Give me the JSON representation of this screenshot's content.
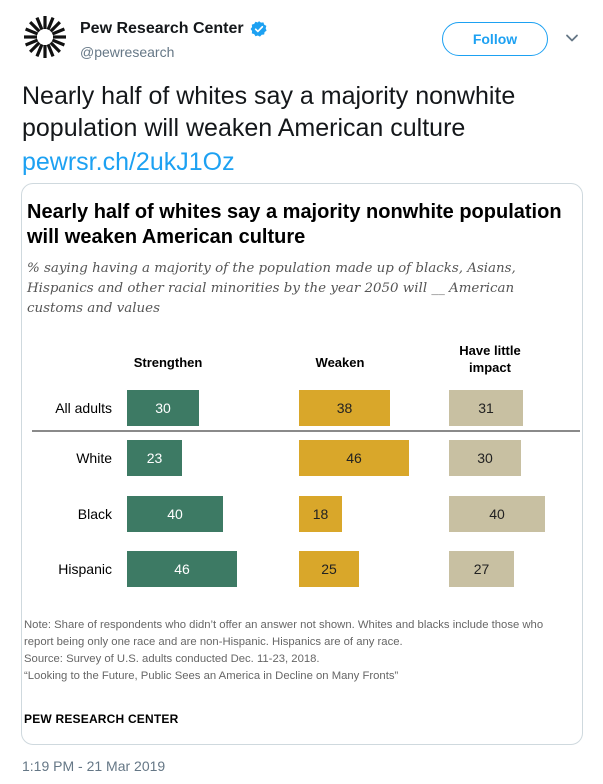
{
  "account": {
    "name": "Pew Research Center",
    "handle": "@pewresearch",
    "follow_label": "Follow",
    "verified_icon": "verified-badge-icon",
    "brand_color": "#1da1f2"
  },
  "tweet": {
    "text": "Nearly half of whites say a majority nonwhite population will weaken American culture",
    "link": "pewrsr.ch/2ukJ1Oz",
    "timestamp": "1:19 PM - 21 Mar 2019"
  },
  "card": {
    "title": "Nearly half of whites say a majority nonwhite population will weaken American culture",
    "subtitle": "% saying having a majority of the population made up of blacks, Asians, Hispanics and other racial minorities by the year 2050 will __ American customs and values",
    "note_lines": [
      "Note: Share of respondents who didn’t offer an answer not shown. Whites and blacks include those who report being only one race and are non-Hispanic. Hispanics are of any race.",
      "Source: Survey of U.S. adults conducted Dec. 11-23, 2018.",
      "“Looking to the Future, Public Sees an America in Decline on Many Fronts”"
    ],
    "brand": "PEW RESEARCH CENTER"
  },
  "chart_data": {
    "type": "bar",
    "categories": [
      "All adults",
      "White",
      "Black",
      "Hispanic"
    ],
    "series": [
      {
        "name": "Strengthen",
        "values": [
          30,
          23,
          40,
          46
        ],
        "color": "#3d7a64"
      },
      {
        "name": "Weaken",
        "values": [
          38,
          46,
          18,
          25
        ],
        "color": "#d9a72a"
      },
      {
        "name": "Have little impact",
        "values": [
          31,
          30,
          40,
          27
        ],
        "color": "#c8c0a2"
      }
    ],
    "title": "Nearly half of whites say a majority nonwhite population will weaken American culture",
    "xlabel": "",
    "ylabel": ""
  }
}
